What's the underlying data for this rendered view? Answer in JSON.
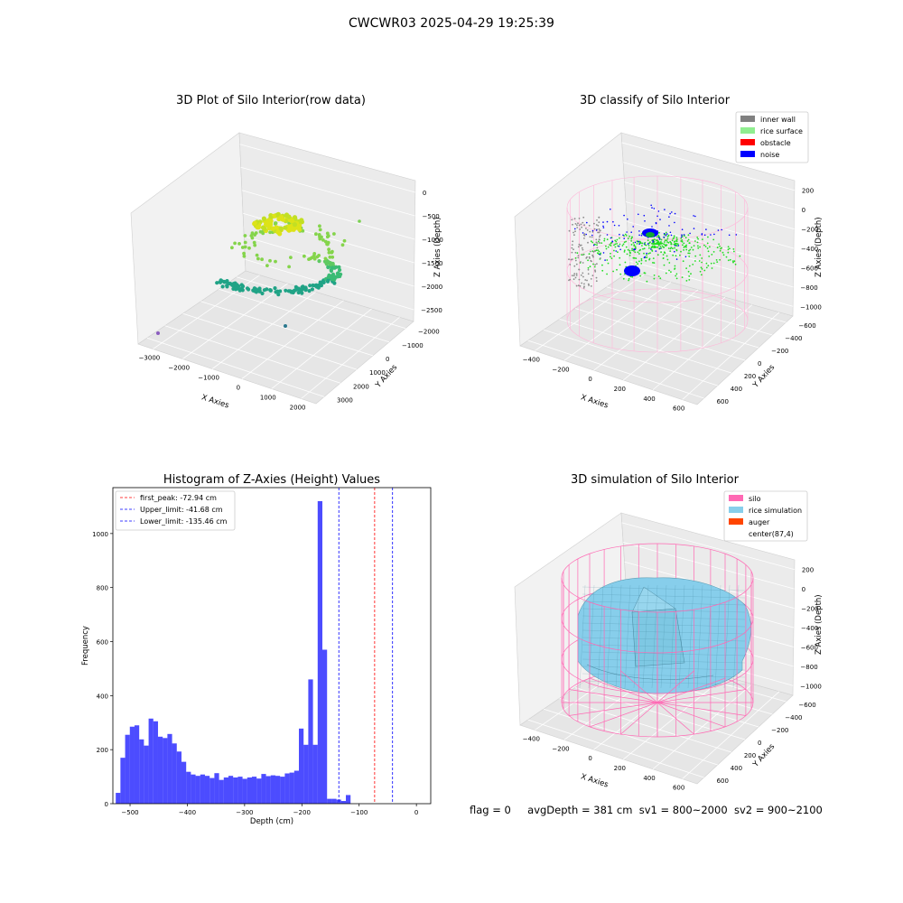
{
  "suptitle": "CWCWR03 2025-04-29 19:25:39",
  "panels": {
    "raw": {
      "title": "3D Plot of Silo Interior(row data)",
      "xlabel": "X Axies",
      "ylabel": "Y Axies",
      "zlabel": "Z Axies (Depth)",
      "xticks": [
        "−3000",
        "−2000",
        "−1000",
        "0",
        "1000",
        "2000"
      ],
      "yticks": [
        "3000",
        "2000",
        "1000",
        "0",
        "−1000",
        "−2000"
      ],
      "zticks": [
        "0",
        "−500",
        "−1000",
        "−1500",
        "−2000",
        "−2500"
      ]
    },
    "classify": {
      "title": "3D classify of Silo Interior",
      "xlabel": "X Axies",
      "ylabel": "Y Axies",
      "zlabel": "Z Axies (Depth)",
      "xticks": [
        "−400",
        "−200",
        "0",
        "200",
        "400",
        "600"
      ],
      "yticks": [
        "600",
        "400",
        "200",
        "0",
        "−200",
        "−400",
        "−600"
      ],
      "zticks": [
        "200",
        "0",
        "−200",
        "−400",
        "−600",
        "−800",
        "−1000"
      ],
      "legend": [
        {
          "label": "inner wall",
          "color": "#808080"
        },
        {
          "label": "rice surface",
          "color": "#90ee90"
        },
        {
          "label": "obstacle",
          "color": "#ff0000"
        },
        {
          "label": "noise",
          "color": "#0000ff"
        }
      ]
    },
    "simulation": {
      "title": "3D simulation of Silo Interior",
      "xlabel": "X Axies",
      "ylabel": "Y Axies",
      "zlabel": "Z Axies (Depth)",
      "xticks": [
        "−400",
        "−200",
        "0",
        "200",
        "400",
        "600"
      ],
      "yticks": [
        "600",
        "400",
        "200",
        "0",
        "−200",
        "−400",
        "−600"
      ],
      "zticks": [
        "200",
        "0",
        "−200",
        "−400",
        "−600",
        "−800",
        "−1000"
      ],
      "legend": [
        {
          "label": "silo",
          "color": "#ff69b4"
        },
        {
          "label": "rice simulation",
          "color": "#87ceeb"
        },
        {
          "label": "auger",
          "color": "#ff4500"
        },
        {
          "label": "center(87,4)",
          "color": null
        }
      ]
    }
  },
  "footer": {
    "flag": "flag = 0",
    "avg": "avgDepth = 381 cm",
    "sv1": "sv1 = 800~2000",
    "sv2": "sv2 = 900~2100"
  },
  "chart_data": {
    "type": "bar",
    "title": "Histogram of Z-Axies (Height) Values",
    "xlabel": "Depth (cm)",
    "ylabel": "Frequency",
    "xlim": [
      -530,
      25
    ],
    "ylim": [
      0,
      1170
    ],
    "xticks": [
      -500,
      -400,
      -300,
      -200,
      -100,
      0
    ],
    "yticks": [
      0,
      200,
      400,
      600,
      800,
      1000
    ],
    "bin_start": -525,
    "bin_width": 8.2,
    "values": [
      40,
      170,
      255,
      285,
      290,
      238,
      215,
      315,
      305,
      248,
      243,
      258,
      223,
      193,
      155,
      118,
      108,
      103,
      108,
      103,
      95,
      113,
      88,
      97,
      103,
      97,
      100,
      92,
      97,
      100,
      93,
      110,
      102,
      105,
      103,
      100,
      112,
      115,
      122,
      278,
      218,
      460,
      218,
      1120,
      570,
      18,
      18,
      15,
      10,
      32
    ],
    "bar_color": "#0000ff",
    "vlines": [
      {
        "label": "first_peak: -72.94 cm",
        "x": -72.94,
        "color": "#ff0000"
      },
      {
        "label": "Upper_limit: -41.68 cm",
        "x": -41.68,
        "color": "#0000ff"
      },
      {
        "label": "Lower_limit: -135.46 cm",
        "x": -135.46,
        "color": "#0000ff"
      }
    ],
    "legend_position": "upper-left",
    "grid": false
  }
}
